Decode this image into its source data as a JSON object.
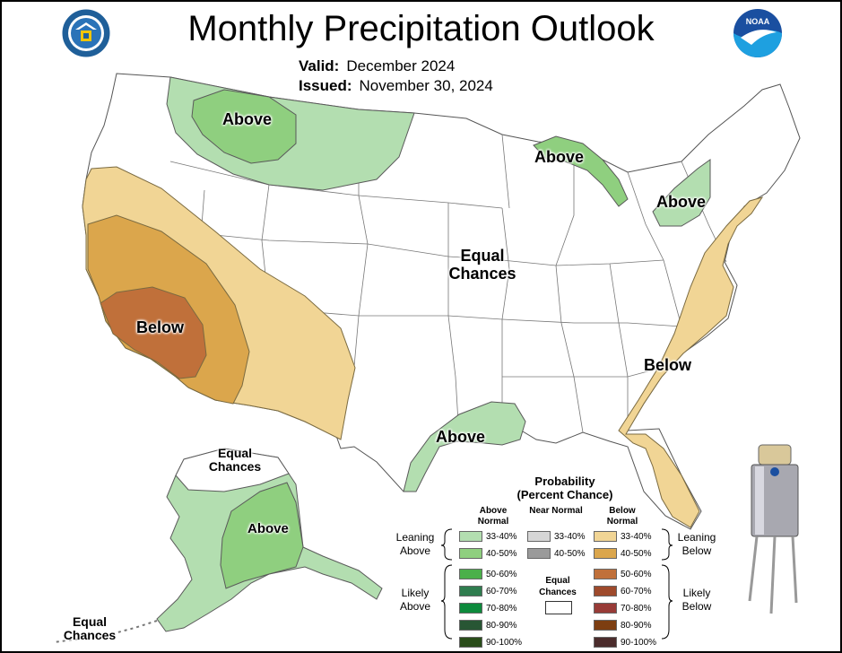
{
  "title": "Monthly Precipitation Outlook",
  "valid_label": "Valid:",
  "valid_value": "December 2024",
  "issued_label": "Issued:",
  "issued_value": "November 30, 2024",
  "regions": {
    "north_above": "Above",
    "great_lakes_above": "Above",
    "northeast_above": "Above",
    "center_equal": "Equal Chances",
    "west_below": "Below",
    "southeast_below": "Below",
    "gulf_above": "Above",
    "alaska_equal": "Equal Chances",
    "alaska_above": "Above",
    "aleutian_equal": "Equal Chances"
  },
  "legend": {
    "title_line1": "Probability",
    "title_line2": "(Percent Chance)",
    "col_above": "Above Normal",
    "col_near": "Near Normal",
    "col_below": "Below Normal",
    "leaning_above": "Leaning Above",
    "likely_above": "Likely Above",
    "leaning_below": "Leaning Below",
    "likely_below": "Likely Below",
    "equal_chances": "Equal Chances",
    "above": [
      {
        "range": "33-40%",
        "color": "#b3deb0"
      },
      {
        "range": "40-50%",
        "color": "#8fcf7f"
      },
      {
        "range": "50-60%",
        "color": "#4bb04a"
      },
      {
        "range": "60-70%",
        "color": "#2f7d4f"
      },
      {
        "range": "70-80%",
        "color": "#0d8a3c"
      },
      {
        "range": "80-90%",
        "color": "#285634"
      },
      {
        "range": "90-100%",
        "color": "#2a4d1a"
      }
    ],
    "near": [
      {
        "range": "33-40%",
        "color": "#d6d6d6"
      },
      {
        "range": "40-50%",
        "color": "#9a9a9a"
      }
    ],
    "below": [
      {
        "range": "33-40%",
        "color": "#f1d595"
      },
      {
        "range": "40-50%",
        "color": "#dba64c"
      },
      {
        "range": "50-60%",
        "color": "#c0703a"
      },
      {
        "range": "60-70%",
        "color": "#9e4a2c"
      },
      {
        "range": "70-80%",
        "color": "#983b37"
      },
      {
        "range": "80-90%",
        "color": "#7d3e11"
      },
      {
        "range": "90-100%",
        "color": "#4b2c2c"
      }
    ]
  }
}
